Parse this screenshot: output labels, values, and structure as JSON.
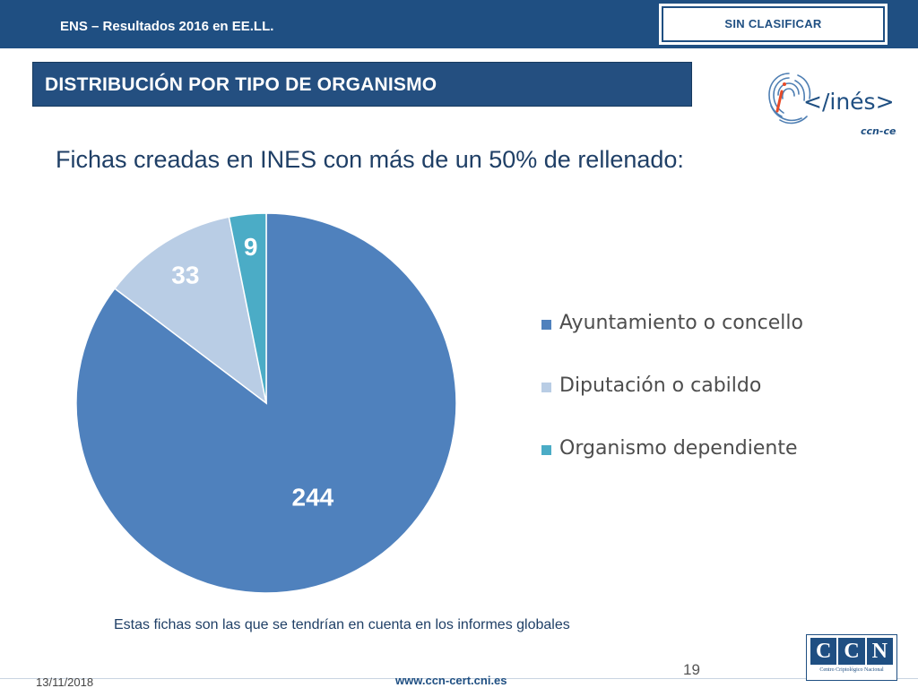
{
  "header": {
    "title": "ENS – Resultados 2016 en EE.LL.",
    "classification": "SIN CLASIFICAR"
  },
  "section": {
    "title": "DISTRIBUCIÓN POR TIPO DE ORGANISMO"
  },
  "logo": {
    "wordmark": "</inés>",
    "brand": "ccn-cert"
  },
  "subtitle": "Fichas creadas en INES con más de un 50% de rellenado:",
  "chart_data": {
    "type": "pie",
    "title": "",
    "categories": [
      "Ayuntamiento o concello",
      "Diputación o cabildo",
      "Organismo dependiente"
    ],
    "values": [
      244,
      33,
      9
    ],
    "data_labels": [
      "244",
      "33",
      "9"
    ],
    "colors": [
      "#4f81bd",
      "#b9cde5",
      "#4bacc6"
    ],
    "legend_position": "right"
  },
  "note": "Estas fichas son las que se tendrían en cuenta en los informes globales",
  "footer": {
    "date": "13/11/2018",
    "url": "www.ccn-cert.cni.es",
    "page_number": "19"
  },
  "ccn_logo": {
    "letters": [
      "C",
      "C",
      "N"
    ],
    "caption": "Centro Criptológico Nacional"
  },
  "colors": {
    "header_blue": "#1f4f82",
    "section_blue": "#244f80",
    "text_navy": "#1f3f66"
  }
}
